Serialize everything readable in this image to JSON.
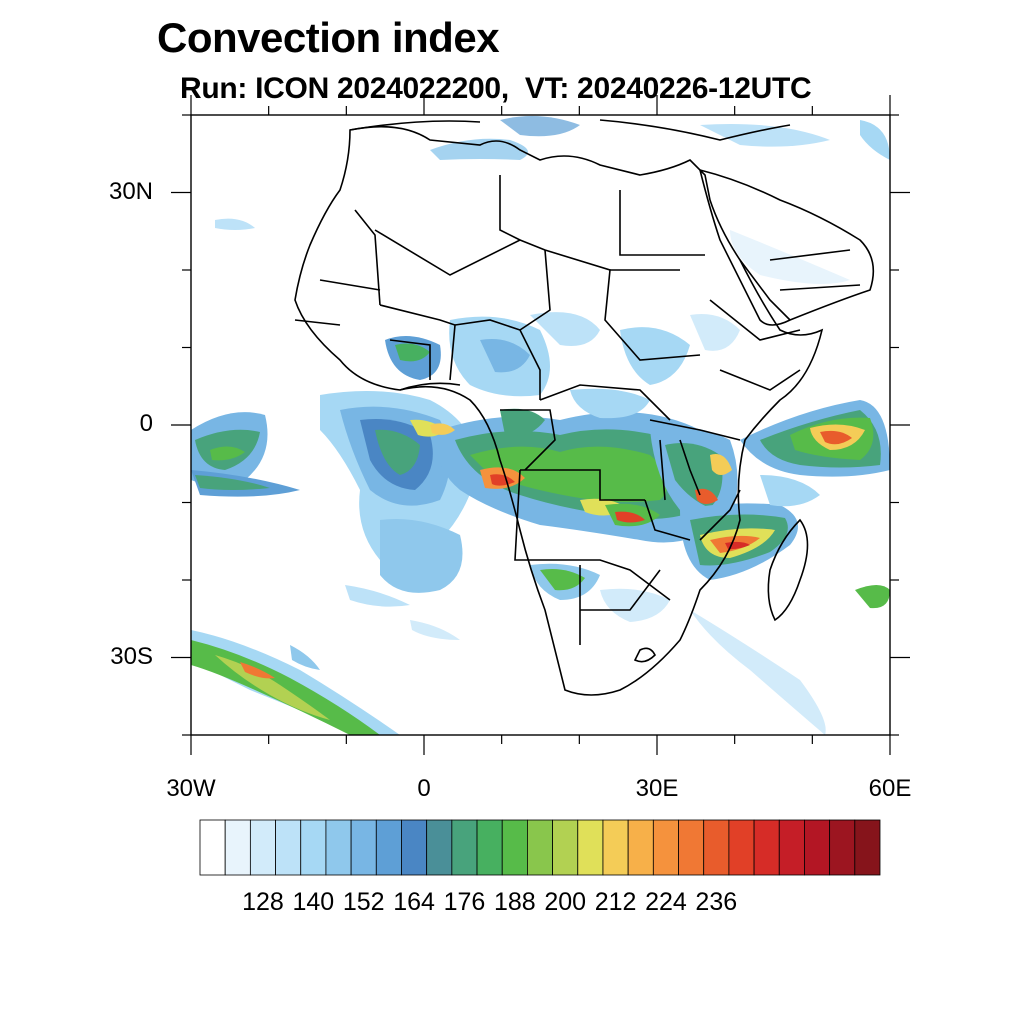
{
  "header": {
    "title": "Convection index",
    "subtitle": "Run: ICON 2024022200,  VT: 20240226-12UTC"
  },
  "map": {
    "lon_range": [
      -30,
      60
    ],
    "lat_range": [
      -40,
      40
    ],
    "lat_ticks": [
      {
        "value": 30,
        "label": "30N"
      },
      {
        "value": 0,
        "label": "0"
      },
      {
        "value": -30,
        "label": "30S"
      }
    ],
    "lon_ticks": [
      {
        "value": -30,
        "label": "30W"
      },
      {
        "value": 0,
        "label": "0"
      },
      {
        "value": 30,
        "label": "30E"
      },
      {
        "value": 60,
        "label": "60E"
      }
    ]
  },
  "colorbar": {
    "labels": [
      "128",
      "140",
      "152",
      "164",
      "176",
      "188",
      "200",
      "212",
      "224",
      "236"
    ],
    "colors": [
      "#ffffff",
      "#e8f4fc",
      "#d2ebfa",
      "#bde2f8",
      "#a6d8f4",
      "#8fc8ec",
      "#78b6e4",
      "#5e9fd6",
      "#4a86c4",
      "#4a8f98",
      "#48a37c",
      "#47b060",
      "#57bb49",
      "#89c64c",
      "#b2d152",
      "#e0e059",
      "#f4cc57",
      "#f7b049",
      "#f5923d",
      "#f07834",
      "#e85c2c",
      "#e14027",
      "#d62c27",
      "#c51e27",
      "#b31624",
      "#9c1520",
      "#86141b"
    ],
    "color_names": [
      "white",
      "pale blue",
      "light blue",
      "sky blue",
      "blue",
      "steel blue",
      "teal",
      "green",
      "yellow-green",
      "yellow",
      "orange",
      "red",
      "dark red"
    ]
  }
}
